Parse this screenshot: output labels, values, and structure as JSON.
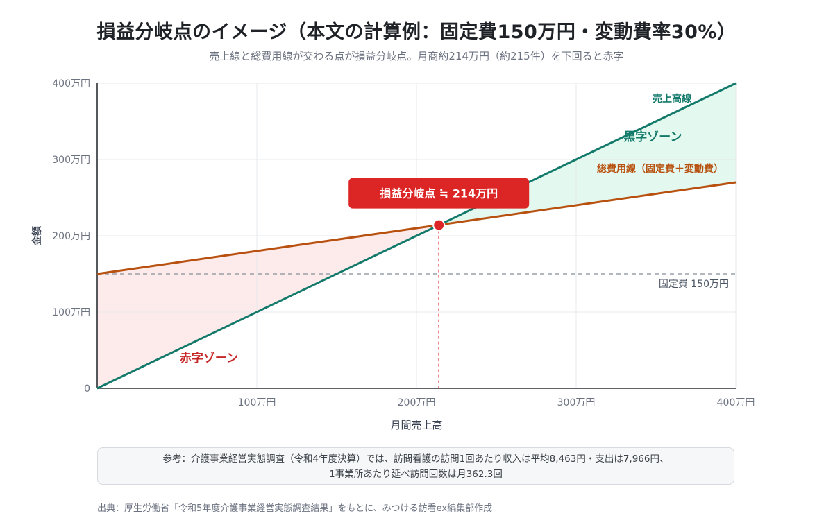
{
  "header": {
    "title": "損益分岐点のイメージ（本文の計算例：固定費150万円・変動費率30%）",
    "subtitle": "売上線と総費用線が交わる点が損益分岐点。月商約214万円（約215件）を下回ると赤字"
  },
  "chart_data": {
    "type": "line",
    "xlabel": "月間売上高",
    "ylabel": "金額",
    "xlim": [
      0,
      400
    ],
    "ylim": [
      0,
      400
    ],
    "unit": "万円",
    "x_ticks": [
      {
        "value": 100,
        "label": "100万円"
      },
      {
        "value": 200,
        "label": "200万円"
      },
      {
        "value": 300,
        "label": "300万円"
      },
      {
        "value": 400,
        "label": "400万円"
      }
    ],
    "y_ticks": [
      {
        "value": 0,
        "label": "0"
      },
      {
        "value": 100,
        "label": "100万円"
      },
      {
        "value": 200,
        "label": "200万円"
      },
      {
        "value": 300,
        "label": "300万円"
      },
      {
        "value": 400,
        "label": "400万円"
      }
    ],
    "grid": true,
    "series": [
      {
        "name": "売上高線",
        "color": "#137a6b",
        "points": [
          [
            0,
            0
          ],
          [
            400,
            400
          ]
        ]
      },
      {
        "name": "総費用線（固定費＋変動費）",
        "color": "#b8510f",
        "points": [
          [
            0,
            150
          ],
          [
            400,
            270
          ]
        ]
      }
    ],
    "fixed_cost": {
      "value": 150,
      "label": "固定費 150万円",
      "color": "#9aa0a8"
    },
    "break_even": {
      "x": 214,
      "y": 214,
      "label": "損益分岐点 ≒ 214万円",
      "color": "#dc2626"
    },
    "zones": {
      "loss": {
        "label": "赤字ゾーン",
        "color": "#c62828",
        "fill": "#fdeaea"
      },
      "profit": {
        "label": "黒字ゾーン",
        "color": "#137a6b",
        "fill": "#e3f8ee"
      }
    }
  },
  "note": {
    "line1": "参考：介護事業経営実態調査（令和4年度決算）では、訪問看護の訪問1回あたり収入は平均8,463円・支出は7,966円、",
    "line2": "1事業所あたり延べ訪問回数は月362.3回"
  },
  "source": "出典：厚生労働省「令和5年度介護事業経営実態調査結果」をもとに、みつける訪看ex編集部作成"
}
